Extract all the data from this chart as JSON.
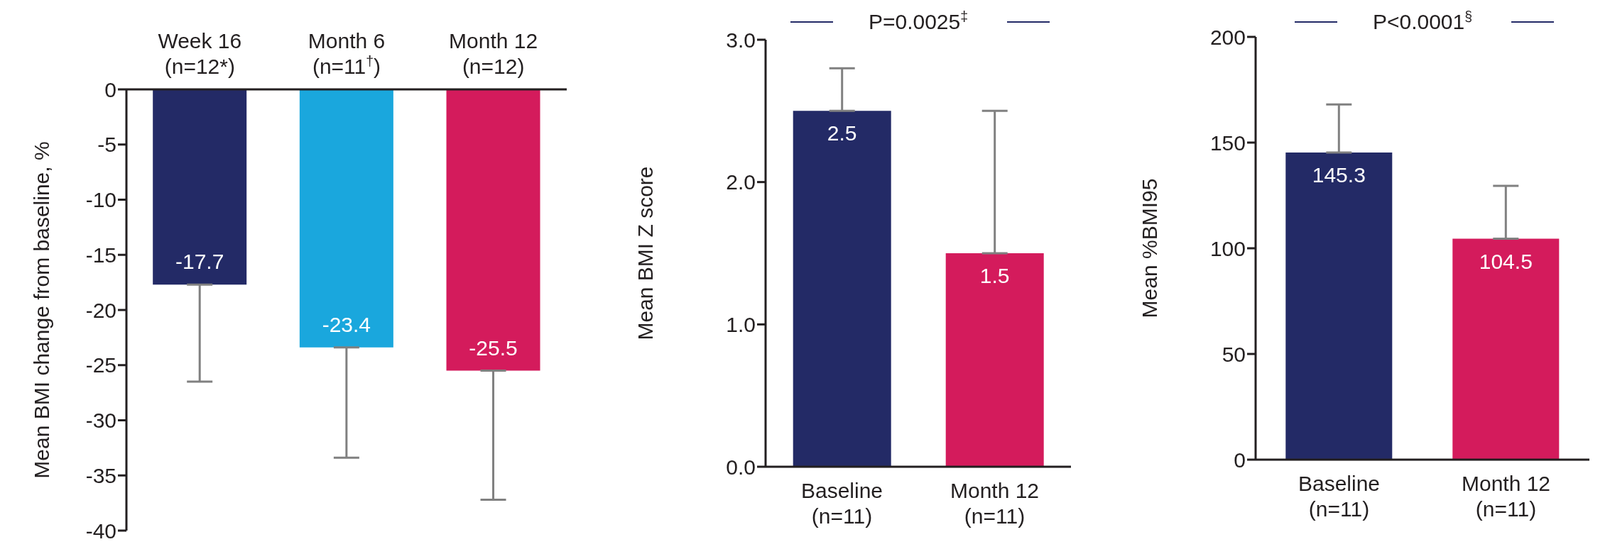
{
  "chart_data": [
    {
      "type": "bar",
      "ylabel": "Mean BMI change from baseline, %",
      "categories": [
        "Week 16\n(n=12*)",
        "Month 6\n(n=11$^{†}$)",
        "Month 12\n(n=12)"
      ],
      "values": [
        -17.7,
        -23.4,
        -25.5
      ],
      "colors": [
        "#232a66",
        "#1aa7dd",
        "#d41b5c"
      ],
      "errors": [
        [
          -26.5,
          -17.7
        ],
        [
          -33.4,
          -23.4
        ],
        [
          -37.2,
          -25.5
        ]
      ],
      "ylim": [
        -40,
        0
      ],
      "yticks": [
        0,
        -5,
        -10,
        -15,
        -20,
        -25,
        -30,
        -35,
        -40
      ],
      "data_labels": true,
      "grid": false,
      "legend": false
    },
    {
      "type": "bar",
      "ylabel": "Mean BMI Z score",
      "annotations": [
        "P=0.0025$^{‡}$"
      ],
      "categories": [
        "Baseline\n(n=11)",
        "Month 12\n(n=11)"
      ],
      "values": [
        2.5,
        1.5
      ],
      "colors": [
        "#232a66",
        "#d41b5c"
      ],
      "errors": [
        [
          2.5,
          2.8
        ],
        [
          1.5,
          2.5
        ]
      ],
      "ylim": [
        0,
        3
      ],
      "yticks": [
        {
          "value": 0,
          "label": "0.0"
        },
        {
          "value": 1,
          "label": "1.0"
        },
        {
          "value": 2,
          "label": "2.0"
        },
        {
          "value": 3,
          "label": "3.0"
        }
      ],
      "data_labels": true,
      "grid": false,
      "legend": false
    },
    {
      "type": "bar",
      "ylabel": "Mean %BMI95",
      "annotations": [
        "P<0.0001$^{§}$"
      ],
      "categories": [
        "Baseline\n(n=11)",
        "Month 12\n(n=11)"
      ],
      "values": [
        145.3,
        104.5
      ],
      "colors": [
        "#232a66",
        "#d41b5c"
      ],
      "errors": [
        [
          145.3,
          168
        ],
        [
          104.5,
          129.5
        ]
      ],
      "ylim": [
        0,
        200
      ],
      "yticks": [
        0,
        50,
        100,
        150,
        200
      ],
      "data_labels": true,
      "grid": false,
      "legend": false
    }
  ]
}
